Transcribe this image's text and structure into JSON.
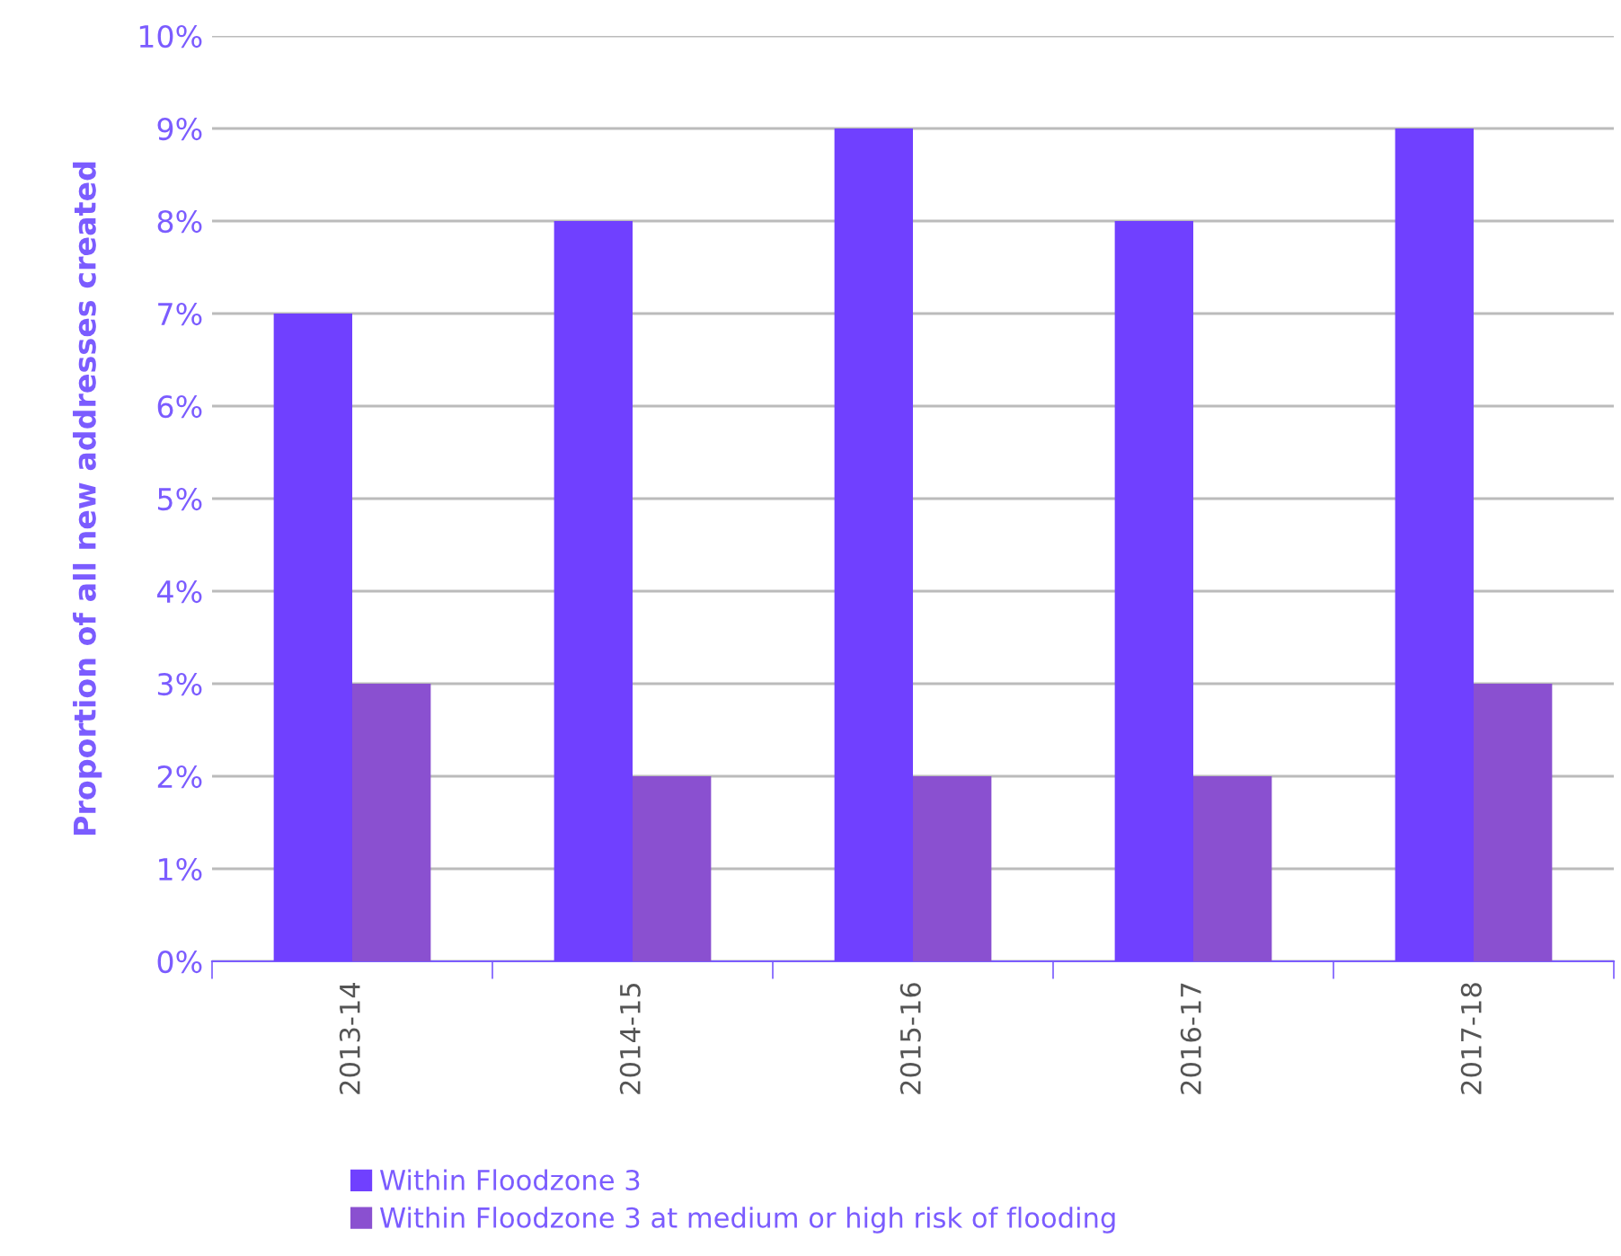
{
  "chart_data": {
    "type": "bar",
    "ylabel": "Proportion of all new addresses created",
    "categories": [
      "2013-14",
      "2014-15",
      "2015-16",
      "2016-17",
      "2017-18"
    ],
    "series": [
      {
        "name": "Within Floodzone 3",
        "color": "#7040ff",
        "values": [
          7,
          8,
          9,
          8,
          9
        ]
      },
      {
        "name": "Within Floodzone 3 at medium or high risk of flooding",
        "color": "#8a50d0",
        "values": [
          3,
          2,
          2,
          2,
          3
        ]
      }
    ],
    "ylim": [
      0,
      10
    ],
    "yticks": [
      {
        "value": 0,
        "label": "0%"
      },
      {
        "value": 1,
        "label": "1%"
      },
      {
        "value": 2,
        "label": "2%"
      },
      {
        "value": 3,
        "label": "3%"
      },
      {
        "value": 4,
        "label": "4%"
      },
      {
        "value": 5,
        "label": "5%"
      },
      {
        "value": 6,
        "label": "6%"
      },
      {
        "value": 7,
        "label": "7%"
      },
      {
        "value": 8,
        "label": "8%"
      },
      {
        "value": 9,
        "label": "9%"
      },
      {
        "value": 10,
        "label": "10%"
      }
    ],
    "grid": "y",
    "legend": "bottom"
  }
}
